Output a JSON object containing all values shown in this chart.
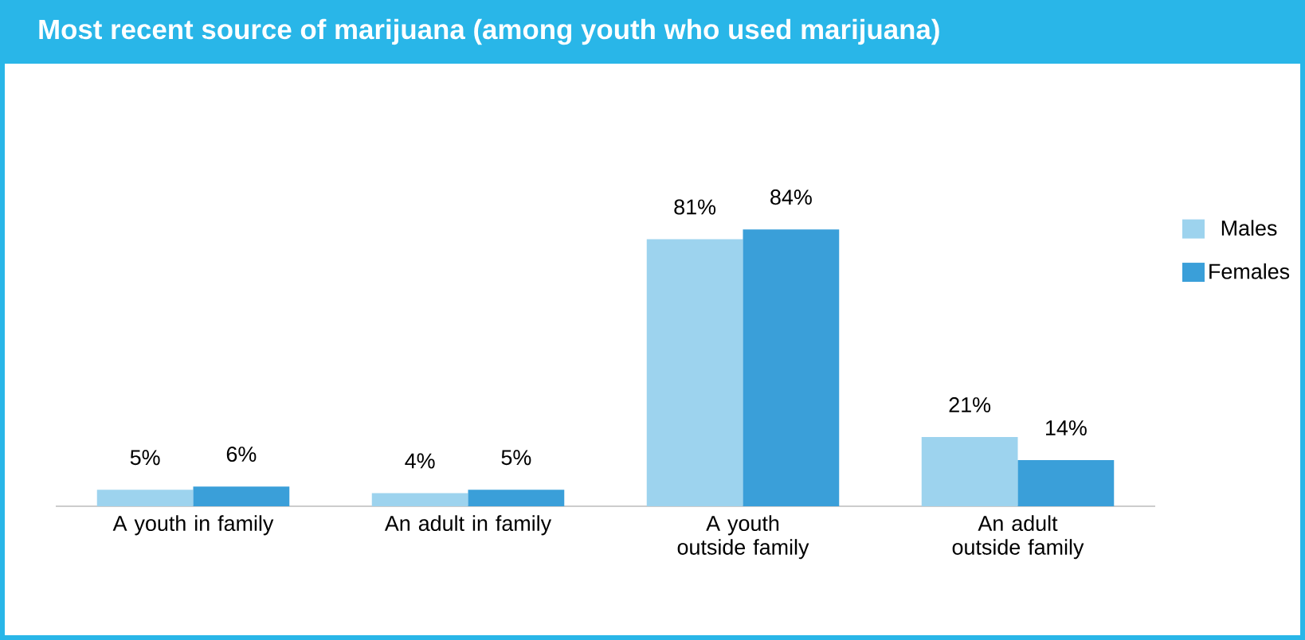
{
  "chart_data": {
    "type": "bar",
    "title": "Most recent source of marijuana (among youth who used marijuana)",
    "categories": [
      "A youth in family",
      "An adult in family",
      "A youth outside family",
      "An adult outside family"
    ],
    "series": [
      {
        "name": "Males",
        "color": "#9dd3ee",
        "values": [
          5,
          4,
          81,
          21
        ],
        "value_labels": [
          "5%",
          "4%",
          "81%",
          "21%"
        ]
      },
      {
        "name": "Females",
        "color": "#3a9fd9",
        "values": [
          6,
          5,
          84,
          14
        ],
        "value_labels": [
          "6%",
          "5%",
          "84%",
          "14%"
        ]
      }
    ],
    "legend": "right",
    "grid": false
  }
}
